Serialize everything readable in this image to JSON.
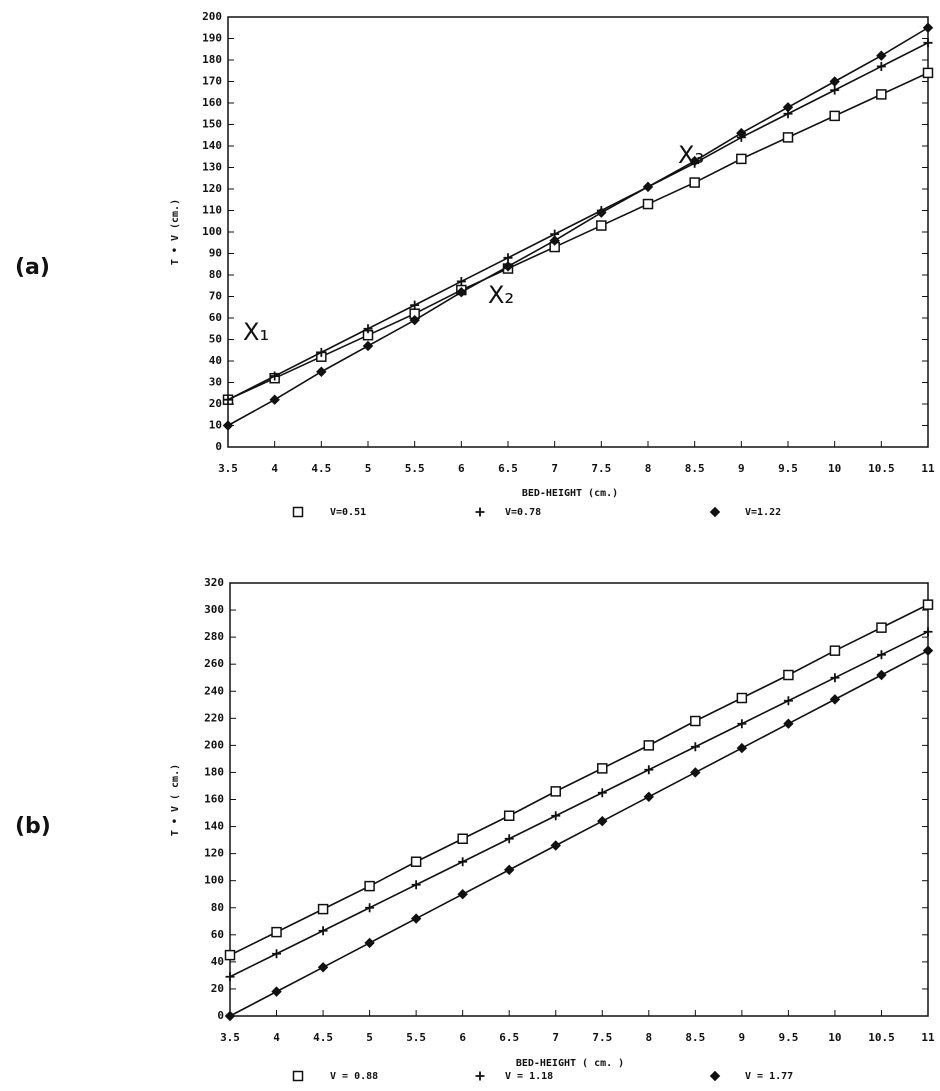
{
  "chart_data": [
    {
      "type": "line",
      "panel_label": "(a)",
      "xlabel": "BED-HEIGHT (cm.)",
      "ylabel": "T • V (cm.)",
      "x": [
        3.5,
        4,
        4.5,
        5,
        5.5,
        6,
        6.5,
        7,
        7.5,
        8,
        8.5,
        9,
        9.5,
        10,
        10.5,
        11
      ],
      "xlim": [
        3.5,
        11
      ],
      "xticks": [
        3.5,
        4,
        4.5,
        5,
        5.5,
        6,
        6.5,
        7,
        7.5,
        8,
        8.5,
        9,
        9.5,
        10,
        10.5,
        11
      ],
      "ylim": [
        0,
        200
      ],
      "yticks": [
        0,
        10,
        20,
        30,
        40,
        50,
        60,
        70,
        80,
        90,
        100,
        110,
        120,
        130,
        140,
        150,
        160,
        170,
        180,
        190,
        200
      ],
      "series": [
        {
          "name": "V=0.51",
          "color": "#111111",
          "marker": "square",
          "values": [
            22,
            32,
            42,
            52,
            62,
            73,
            83,
            93,
            103,
            113,
            123,
            134,
            144,
            154,
            164,
            174
          ]
        },
        {
          "name": "V=0.78",
          "color": "#111111",
          "marker": "plus",
          "values": [
            22,
            33,
            44,
            55,
            66,
            77,
            88,
            99,
            110,
            121,
            132,
            144,
            155,
            166,
            177,
            188
          ]
        },
        {
          "name": "V=1.22",
          "color": "#111111",
          "marker": "diamond",
          "values": [
            10,
            22,
            35,
            47,
            59,
            72,
            84,
            96,
            109,
            121,
            133,
            146,
            158,
            170,
            182,
            195
          ]
        }
      ],
      "annotations": [
        "X₁",
        "X₂",
        "X₃"
      ]
    },
    {
      "type": "line",
      "panel_label": "(b)",
      "xlabel": "BED-HEIGHT ( cm. )",
      "ylabel": "T • V ( cm.)",
      "x": [
        3.5,
        4,
        4.5,
        5,
        5.5,
        6,
        6.5,
        7,
        7.5,
        8,
        8.5,
        9,
        9.5,
        10,
        10.5,
        11
      ],
      "xlim": [
        3.5,
        11
      ],
      "xticks": [
        3.5,
        4,
        4.5,
        5,
        5.5,
        6,
        6.5,
        7,
        7.5,
        8,
        8.5,
        9,
        9.5,
        10,
        10.5,
        11
      ],
      "ylim": [
        0,
        320
      ],
      "yticks": [
        0,
        20,
        40,
        60,
        80,
        100,
        120,
        140,
        160,
        180,
        200,
        220,
        240,
        260,
        280,
        300,
        320
      ],
      "series": [
        {
          "name": "V = 0.88",
          "color": "#111111",
          "marker": "square",
          "values": [
            45,
            62,
            79,
            96,
            114,
            131,
            148,
            166,
            183,
            200,
            218,
            235,
            252,
            270,
            287,
            304
          ]
        },
        {
          "name": "V = 1.18",
          "color": "#111111",
          "marker": "plus",
          "values": [
            29,
            46,
            63,
            80,
            97,
            114,
            131,
            148,
            165,
            182,
            199,
            216,
            233,
            250,
            267,
            284
          ]
        },
        {
          "name": "V = 1.77",
          "color": "#111111",
          "marker": "diamond",
          "values": [
            0,
            18,
            36,
            54,
            72,
            90,
            108,
            126,
            144,
            162,
            180,
            198,
            216,
            234,
            252,
            270
          ]
        }
      ]
    }
  ]
}
